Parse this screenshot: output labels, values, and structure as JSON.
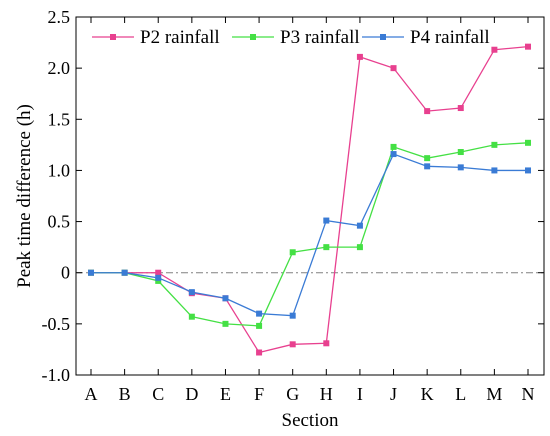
{
  "chart_data": {
    "type": "line",
    "title": "",
    "xlabel": "Section",
    "ylabel": "Peak time difference (h)",
    "categories": [
      "A",
      "B",
      "C",
      "D",
      "E",
      "F",
      "G",
      "H",
      "I",
      "J",
      "K",
      "L",
      "M",
      "N"
    ],
    "ylim": [
      -1.0,
      2.5
    ],
    "yticks": [
      -1.0,
      -0.5,
      0,
      0.5,
      1.0,
      1.5,
      2.0,
      2.5
    ],
    "ytick_labels": [
      "-1.0",
      "-0.5",
      "0",
      "0.5",
      "1.0",
      "1.5",
      "2.0",
      "2.5"
    ],
    "reference_line": {
      "y": 0,
      "style": "dash-dot",
      "color": "#808080"
    },
    "legend": {
      "placement": "top",
      "orientation": "horizontal"
    },
    "grid": false,
    "series": [
      {
        "name": "P2 rainfall",
        "color": "#e8408f",
        "marker": "square",
        "values": [
          0,
          0,
          0,
          -0.2,
          -0.25,
          -0.78,
          -0.7,
          -0.69,
          2.11,
          2.0,
          1.58,
          1.61,
          2.18,
          2.21
        ]
      },
      {
        "name": "P3 rainfall",
        "color": "#44e044",
        "marker": "square",
        "values": [
          0,
          0,
          -0.08,
          -0.43,
          -0.5,
          -0.52,
          0.2,
          0.25,
          0.25,
          1.23,
          1.12,
          1.18,
          1.25,
          1.27
        ]
      },
      {
        "name": "P4 rainfall",
        "color": "#3a7bd5",
        "marker": "square",
        "values": [
          0,
          0,
          -0.05,
          -0.19,
          -0.25,
          -0.4,
          -0.42,
          0.51,
          0.46,
          1.16,
          1.04,
          1.03,
          1.0,
          1.0
        ]
      }
    ]
  }
}
